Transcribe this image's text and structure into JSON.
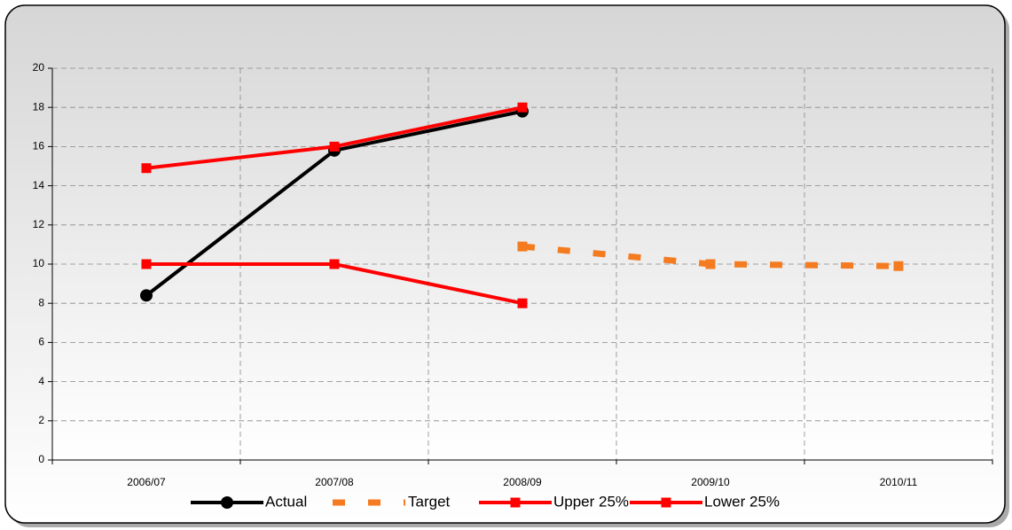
{
  "chart_data": {
    "type": "line",
    "categories": [
      "2006/07",
      "2007/08",
      "2008/09",
      "2009/10",
      "2010/11"
    ],
    "series": [
      {
        "name": "Actual",
        "color": "#000000",
        "marker": "circle",
        "dash": false,
        "values": [
          8.4,
          15.8,
          17.8,
          null,
          null
        ]
      },
      {
        "name": "Target",
        "color": "#f47b20",
        "marker": "square",
        "dash": true,
        "values": [
          null,
          null,
          10.9,
          10.0,
          9.9
        ]
      },
      {
        "name": "Upper 25%",
        "color": "#ff0000",
        "marker": "square",
        "dash": false,
        "values": [
          14.9,
          16,
          18,
          null,
          null
        ]
      },
      {
        "name": "Lower 25%",
        "color": "#ff0000",
        "marker": "square",
        "dash": false,
        "values": [
          10,
          10,
          8,
          null,
          null
        ]
      }
    ],
    "ylim": [
      0,
      20
    ],
    "yticks": [
      0,
      2,
      4,
      6,
      8,
      10,
      12,
      14,
      16,
      18,
      20
    ],
    "grid": true,
    "legend": "bottom"
  }
}
